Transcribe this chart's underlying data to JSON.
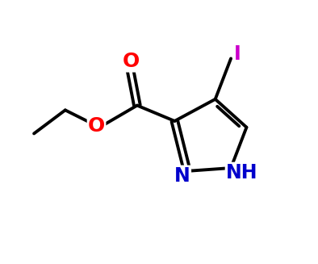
{
  "bg_color": "#ffffff",
  "atom_colors": {
    "O": "#ff0000",
    "N": "#0000cc",
    "I": "#cc00cc"
  },
  "bond_color": "#000000",
  "bond_width": 2.8,
  "figsize": [
    3.94,
    3.27
  ],
  "dpi": 100,
  "xlim": [
    0,
    10
  ],
  "ylim": [
    0,
    8.3
  ]
}
